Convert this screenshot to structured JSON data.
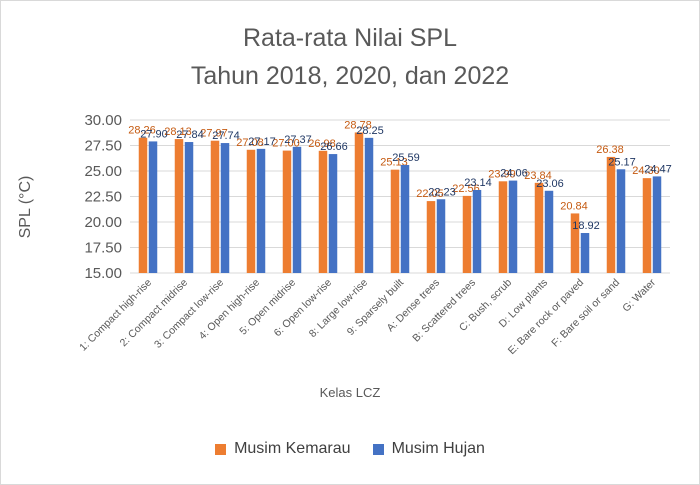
{
  "chart_data": {
    "type": "bar",
    "title": [
      "Rata-rata Nilai SPL",
      "Tahun 2018, 2020, dan 2022"
    ],
    "xlabel": "Kelas LCZ",
    "ylabel": "SPL (°C)",
    "ylim": [
      15,
      30
    ],
    "yticks": [
      "15.00",
      "17.50",
      "20.00",
      "22.50",
      "25.00",
      "27.50",
      "30.00"
    ],
    "grid": true,
    "legend_position": "bottom",
    "categories": [
      "1: Compact high-rise",
      "2: Compact midrise",
      "3: Compact low-rise",
      "4: Open high-rise",
      "5: Open midrise",
      "6: Open low-rise",
      "8: Large low-rise",
      "9: Sparsely built",
      "A: Dense trees",
      "B: Scattered trees",
      "C: Bush, scrub",
      "D: Low plants",
      "E: Bare rock or paved",
      "F: Bare soil or sand",
      "G: Water"
    ],
    "series": [
      {
        "name": "Musim Kemarau",
        "color": "#ED7D31",
        "label_color": "#C55A11",
        "values": [
          28.26,
          28.13,
          27.97,
          27.08,
          27.0,
          26.98,
          28.78,
          25.13,
          22.05,
          22.56,
          23.99,
          23.84,
          20.84,
          26.38,
          24.3
        ],
        "labels": [
          "28.26",
          "28.13",
          "27.97",
          "27.08",
          "27.00",
          "26.98",
          "28.78",
          "25.13",
          "22.05",
          "22.56",
          "23.99",
          "23.84",
          "20.84",
          "26.38",
          "24.30"
        ]
      },
      {
        "name": "Musim Hujan",
        "color": "#4472C4",
        "label_color": "#203864",
        "values": [
          27.9,
          27.84,
          27.74,
          27.17,
          27.37,
          26.66,
          28.25,
          25.59,
          22.23,
          23.14,
          24.06,
          23.06,
          18.92,
          25.17,
          24.47
        ],
        "labels": [
          "27.90",
          "27.84",
          "27.74",
          "27.17",
          "27.37",
          "26.66",
          "28.25",
          "25.59",
          "22.23",
          "23.14",
          "24.06",
          "23.06",
          "18.92",
          "25.17",
          "24.47"
        ]
      }
    ]
  }
}
